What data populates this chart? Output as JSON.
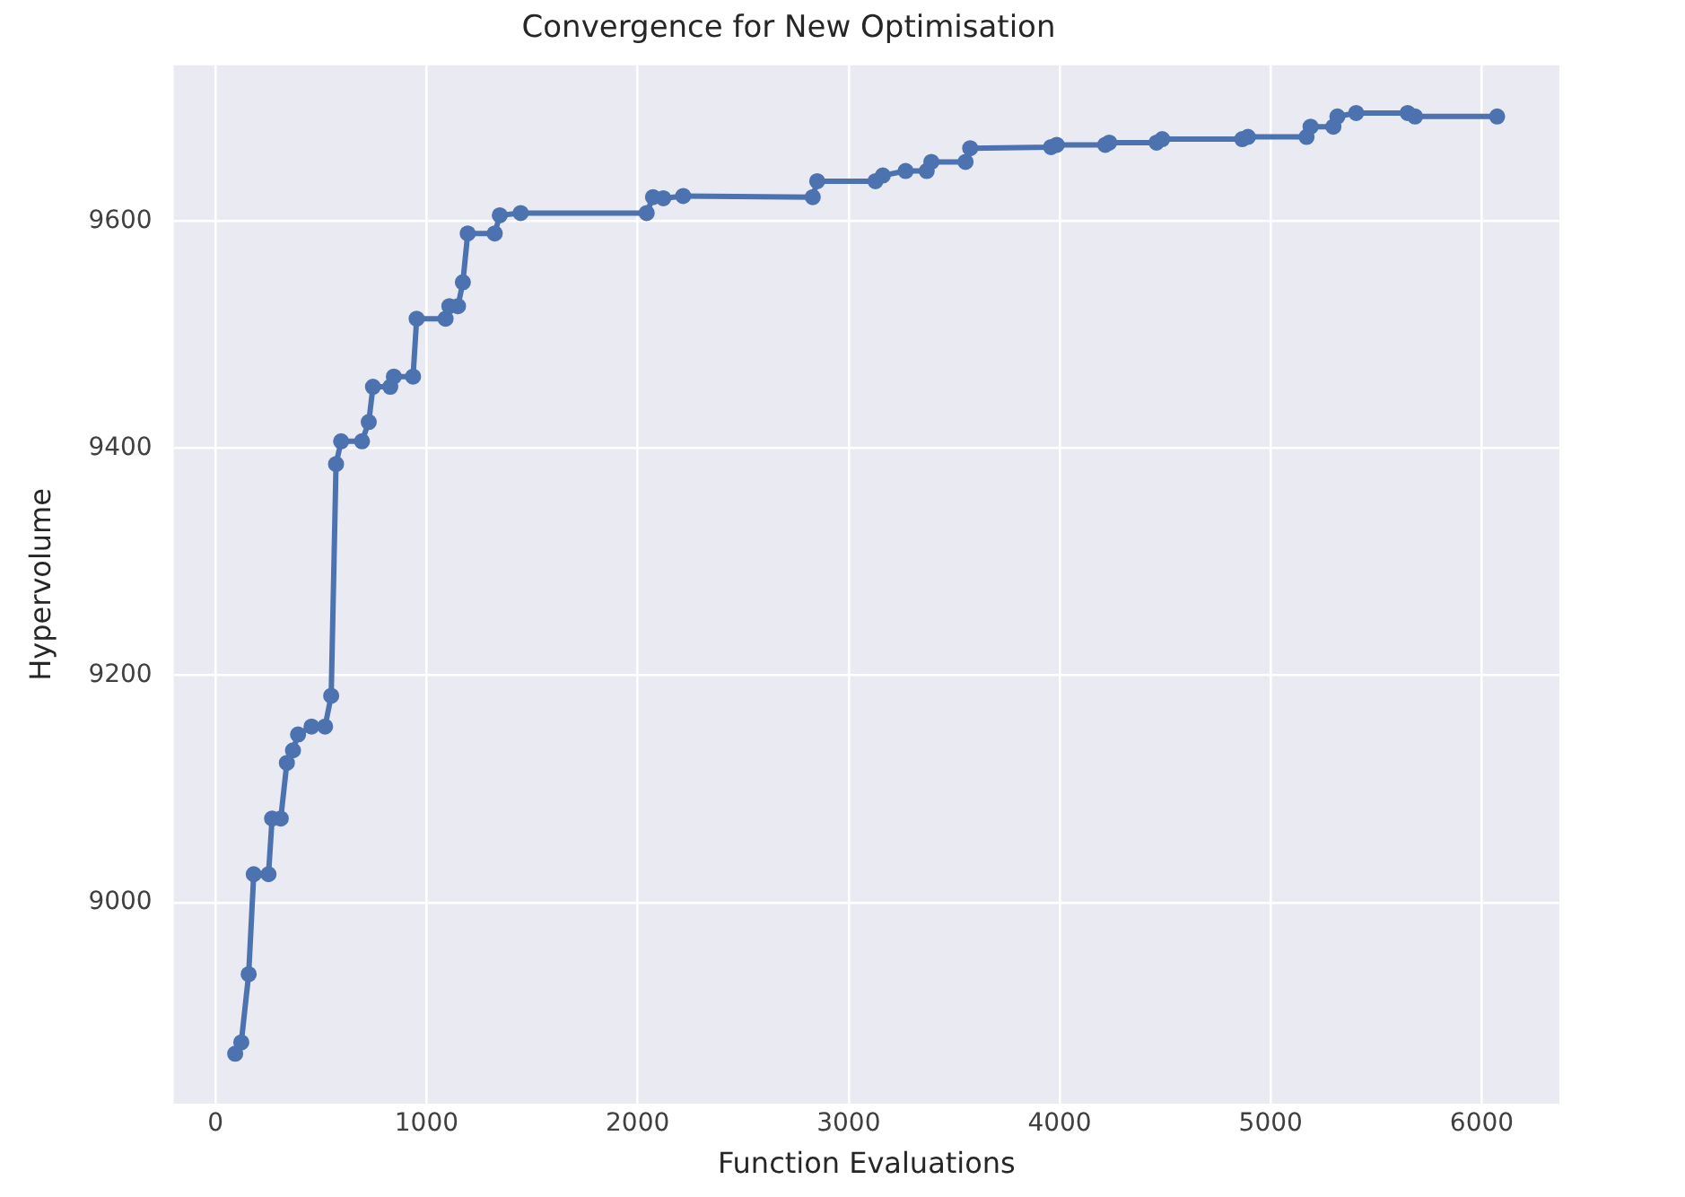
{
  "chart_data": {
    "type": "line",
    "title": "Convergence for New Optimisation",
    "xlabel": "Function Evaluations",
    "ylabel": "Hypervolume",
    "x": [
      93,
      122,
      157,
      181,
      251,
      268,
      309,
      338,
      367,
      391,
      455,
      519,
      548,
      571,
      595,
      694,
      726,
      746,
      828,
      845,
      936,
      953,
      1090,
      1108,
      1149,
      1172,
      1195,
      1323,
      1347,
      1446,
      2043,
      2073,
      2122,
      2216,
      2830,
      2851,
      3127,
      3162,
      3270,
      3370,
      3392,
      3554,
      3576,
      3959,
      3986,
      4216,
      4235,
      4459,
      4486,
      4865,
      4892,
      5170,
      5189,
      5297,
      5316,
      5405,
      5649,
      5684,
      6073
    ],
    "series": [
      {
        "color": "#4c72b0",
        "values": [
          8867,
          8877,
          8937,
          9025,
          9025,
          9074,
          9074,
          9123,
          9134,
          9148,
          9155,
          9155,
          9182,
          9386,
          9406,
          9406,
          9423,
          9454,
          9454,
          9463,
          9463,
          9514,
          9514,
          9525,
          9525,
          9546,
          9589,
          9589,
          9605,
          9607,
          9607,
          9621,
          9620,
          9622,
          9621,
          9635,
          9635,
          9640,
          9644,
          9644,
          9652,
          9652,
          9664,
          9665,
          9667,
          9667,
          9669,
          9669,
          9672,
          9672,
          9674,
          9674,
          9683,
          9683,
          9692,
          9695,
          9695,
          9692,
          9692
        ]
      }
    ],
    "xlim": [
      -198,
      6368
    ],
    "ylim": [
      8823,
      9737
    ],
    "xticks": [
      0,
      1000,
      2000,
      3000,
      4000,
      5000,
      6000
    ],
    "yticks": [
      9000,
      9200,
      9400,
      9600
    ],
    "grid": true,
    "legend": false,
    "marker": "circle",
    "line_style": "solid"
  }
}
